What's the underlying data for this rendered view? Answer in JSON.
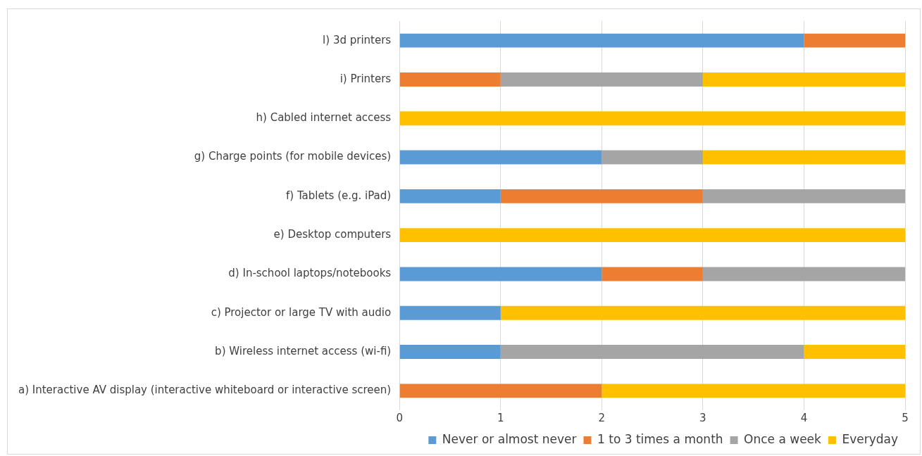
{
  "chart_data": {
    "type": "bar",
    "orientation": "horizontal",
    "stacked": true,
    "categories": [
      "l) 3d printers",
      "i) Printers",
      "h) Cabled internet access",
      "g) Charge points (for mobile devices)",
      "f) Tablets (e.g. iPad)",
      "e) Desktop computers",
      "d) In-school laptops/notebooks",
      "c) Projector or large TV with audio",
      "b) Wireless internet access (wi-fi)",
      "a) Interactive AV display (interactive whiteboard or interactive screen)"
    ],
    "series": [
      {
        "name": "Never or almost never",
        "color": "#5b9bd5",
        "values": [
          4,
          0,
          0,
          2,
          1,
          0,
          2,
          1,
          1,
          0
        ]
      },
      {
        "name": "1 to 3 times a month",
        "color": "#ed7d31",
        "values": [
          1,
          1,
          0,
          0,
          2,
          0,
          1,
          0,
          0,
          2
        ]
      },
      {
        "name": "Once a week",
        "color": "#a5a5a5",
        "values": [
          0,
          2,
          0,
          1,
          2,
          0,
          2,
          0,
          3,
          0
        ]
      },
      {
        "name": "Everyday",
        "color": "#ffc000",
        "values": [
          0,
          2,
          5,
          2,
          0,
          5,
          0,
          4,
          1,
          3
        ]
      }
    ],
    "xlim": [
      0,
      5
    ],
    "xticks": [
      0,
      1,
      2,
      3,
      4,
      5
    ],
    "grid": "x",
    "legend": "bottom right"
  }
}
